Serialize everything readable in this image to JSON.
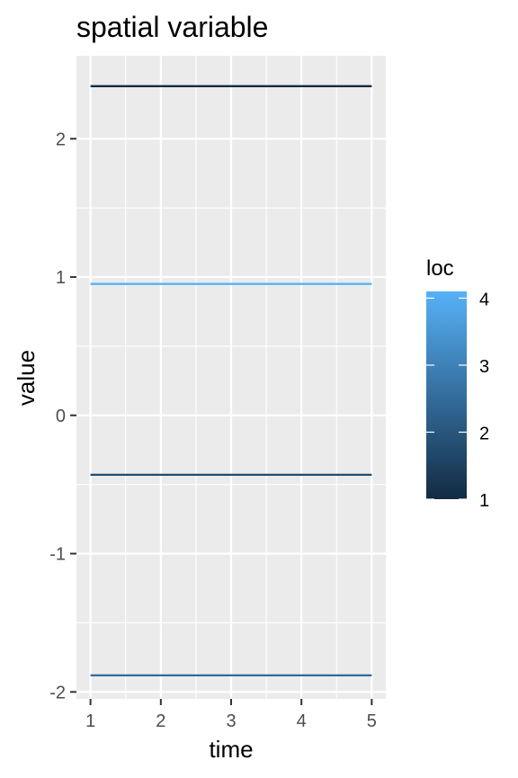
{
  "chart_data": {
    "type": "line",
    "title": "spatial variable",
    "xlabel": "time",
    "ylabel": "value",
    "x": [
      1,
      2,
      3,
      4,
      5
    ],
    "xlim": [
      0.8,
      5.2
    ],
    "ylim": [
      -2.05,
      2.6
    ],
    "x_ticks": [
      1,
      2,
      3,
      4,
      5
    ],
    "y_ticks": [
      -2,
      -1,
      0,
      1,
      2
    ],
    "x_minor": [
      1.5,
      2.5,
      3.5,
      4.5
    ],
    "y_minor": [
      -1.5,
      -0.5,
      0.5,
      1.5
    ],
    "grid": true,
    "series": [
      {
        "loc": 1,
        "values": [
          2.38,
          2.38,
          2.38,
          2.38,
          2.38
        ],
        "color": "#132B43"
      },
      {
        "loc": 2,
        "values": [
          -0.43,
          -0.43,
          -0.43,
          -0.43,
          -0.43
        ],
        "color": "#234A70"
      },
      {
        "loc": 3,
        "values": [
          -1.88,
          -1.88,
          -1.88,
          -1.88,
          -1.88
        ],
        "color": "#336A9E"
      },
      {
        "loc": 4,
        "values": [
          0.95,
          0.95,
          0.95,
          0.95,
          0.95
        ],
        "color": "#56B1F7"
      }
    ],
    "legend": {
      "title": "loc",
      "position": "right",
      "range": [
        1,
        4.1
      ],
      "ticks": [
        1,
        2,
        3,
        4
      ],
      "low_color": "#132B43",
      "high_color": "#56B1F7"
    },
    "panel_background": "#EBEBEB",
    "grid_color": "#FFFFFF"
  }
}
